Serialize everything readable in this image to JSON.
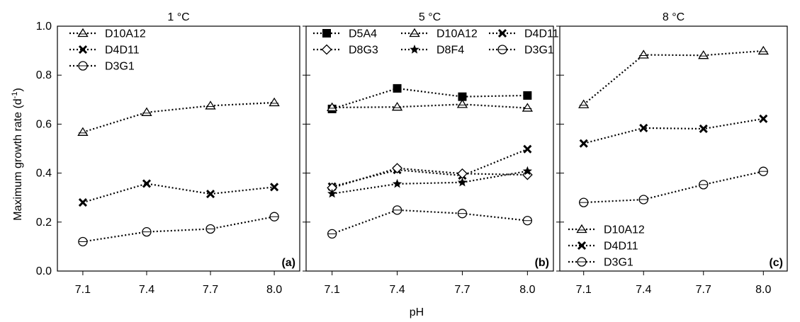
{
  "figure": {
    "ylabel": "Maximum growth rate (d",
    "ylabel_sup": "-1",
    "ylabel_end": ")",
    "xlabel": "pH"
  },
  "chart_data": [
    {
      "type": "line",
      "title": "1 °C",
      "panel_label": "(a)",
      "x": [
        7.1,
        7.4,
        7.7,
        8.0
      ],
      "xticks": [
        "7.1",
        "7.4",
        "7.7",
        "8.0"
      ],
      "ylim": [
        0,
        1
      ],
      "yticks": [
        "0.0",
        "0.2",
        "0.4",
        "0.6",
        "0.8",
        "1.0"
      ],
      "legend_position": "top-left",
      "series": [
        {
          "name": "D10A12",
          "marker": "triangle-open",
          "values": [
            0.567,
            0.648,
            0.675,
            0.688
          ]
        },
        {
          "name": "D4D11",
          "marker": "x",
          "values": [
            0.28,
            0.357,
            0.315,
            0.343
          ]
        },
        {
          "name": "D3G1",
          "marker": "circle-dot",
          "values": [
            0.12,
            0.16,
            0.172,
            0.222
          ]
        }
      ]
    },
    {
      "type": "line",
      "title": "5 °C",
      "panel_label": "(b)",
      "x": [
        7.1,
        7.4,
        7.7,
        8.0
      ],
      "xticks": [
        "7.1",
        "7.4",
        "7.7",
        "8.0"
      ],
      "ylim": [
        0,
        1
      ],
      "legend_position": "top",
      "series": [
        {
          "name": "D5A4",
          "marker": "square-filled",
          "values": [
            0.662,
            0.746,
            0.712,
            0.717
          ]
        },
        {
          "name": "D10A12",
          "marker": "triangle-open",
          "values": [
            0.668,
            0.67,
            0.681,
            0.666
          ]
        },
        {
          "name": "D4D11",
          "marker": "x",
          "values": [
            0.345,
            0.413,
            0.39,
            0.498
          ]
        },
        {
          "name": "D8G3",
          "marker": "diamond-open",
          "values": [
            0.34,
            0.42,
            0.398,
            0.393
          ]
        },
        {
          "name": "D8F4",
          "marker": "star-filled",
          "values": [
            0.316,
            0.356,
            0.362,
            0.408
          ]
        },
        {
          "name": "D3G1",
          "marker": "circle-dot",
          "values": [
            0.152,
            0.249,
            0.235,
            0.206
          ]
        }
      ]
    },
    {
      "type": "line",
      "title": "8 °C",
      "panel_label": "(c)",
      "x": [
        7.1,
        7.4,
        7.7,
        8.0
      ],
      "xticks": [
        "7.1",
        "7.4",
        "7.7",
        "8.0"
      ],
      "ylim": [
        0,
        1
      ],
      "legend_position": "bottom-left",
      "series": [
        {
          "name": "D10A12",
          "marker": "triangle-open",
          "values": [
            0.68,
            0.883,
            0.881,
            0.899
          ]
        },
        {
          "name": "D4D11",
          "marker": "x",
          "values": [
            0.521,
            0.584,
            0.581,
            0.622
          ]
        },
        {
          "name": "D3G1",
          "marker": "circle-dot",
          "values": [
            0.28,
            0.292,
            0.353,
            0.407
          ]
        }
      ]
    }
  ]
}
